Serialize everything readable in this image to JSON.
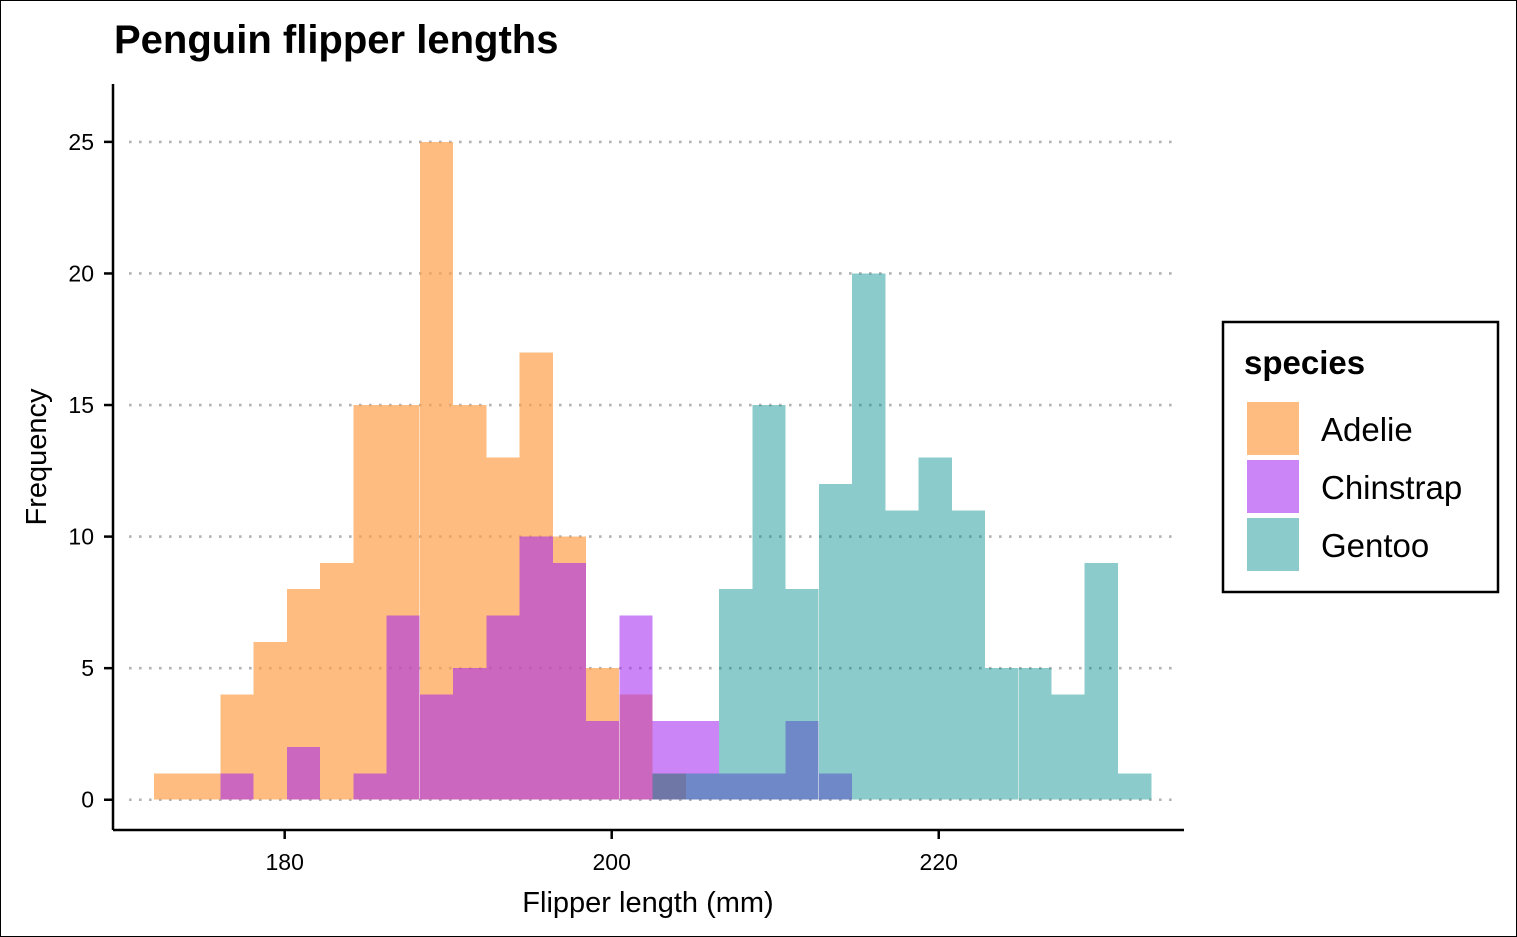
{
  "chart_data": {
    "type": "histogram",
    "title": "Penguin flipper lengths",
    "xlabel": "Flipper length (mm)",
    "ylabel": "Frequency",
    "xlim": [
      169.5,
      235
    ],
    "ylim": [
      -1.15,
      27.2
    ],
    "x_ticks": [
      180,
      200,
      220
    ],
    "y_ticks": [
      0,
      5,
      10,
      15,
      20,
      25
    ],
    "grid": "horizontal-dotted",
    "legend_title": "species",
    "legend_position": "right",
    "bin_width": 2.03,
    "bin_starts": [
      172.0,
      174.03,
      176.07,
      178.1,
      180.13,
      182.17,
      184.2,
      186.23,
      188.27,
      190.3,
      192.33,
      194.37,
      196.4,
      198.43,
      200.47,
      202.5,
      204.53,
      206.57,
      208.6,
      210.63,
      212.67,
      214.7,
      216.73,
      218.77,
      220.8,
      222.83,
      224.87,
      226.9,
      228.93,
      230.97
    ],
    "series": [
      {
        "name": "Adelie",
        "color": "#FDA04C",
        "opacity": 0.7,
        "values": [
          1,
          1,
          4,
          6,
          8,
          9,
          15,
          15,
          25,
          15,
          13,
          17,
          10,
          5,
          4,
          1,
          0,
          0,
          0,
          0,
          0,
          0,
          0,
          0,
          0,
          0,
          0,
          0,
          0,
          0
        ]
      },
      {
        "name": "Chinstrap",
        "color": "#A020F0",
        "opacity": 0.55,
        "values": [
          0,
          0,
          1,
          0,
          2,
          0,
          1,
          7,
          4,
          5,
          7,
          10,
          9,
          3,
          7,
          3,
          3,
          1,
          1,
          3,
          1,
          0,
          0,
          0,
          0,
          0,
          0,
          0,
          0,
          0
        ]
      },
      {
        "name": "Gentoo",
        "color": "#008B8B",
        "opacity": 0.45,
        "values": [
          0,
          0,
          0,
          0,
          0,
          0,
          0,
          0,
          0,
          0,
          0,
          0,
          0,
          0,
          0,
          1,
          1,
          8,
          15,
          8,
          12,
          20,
          11,
          13,
          11,
          5,
          5,
          4,
          9,
          1
        ]
      }
    ]
  }
}
